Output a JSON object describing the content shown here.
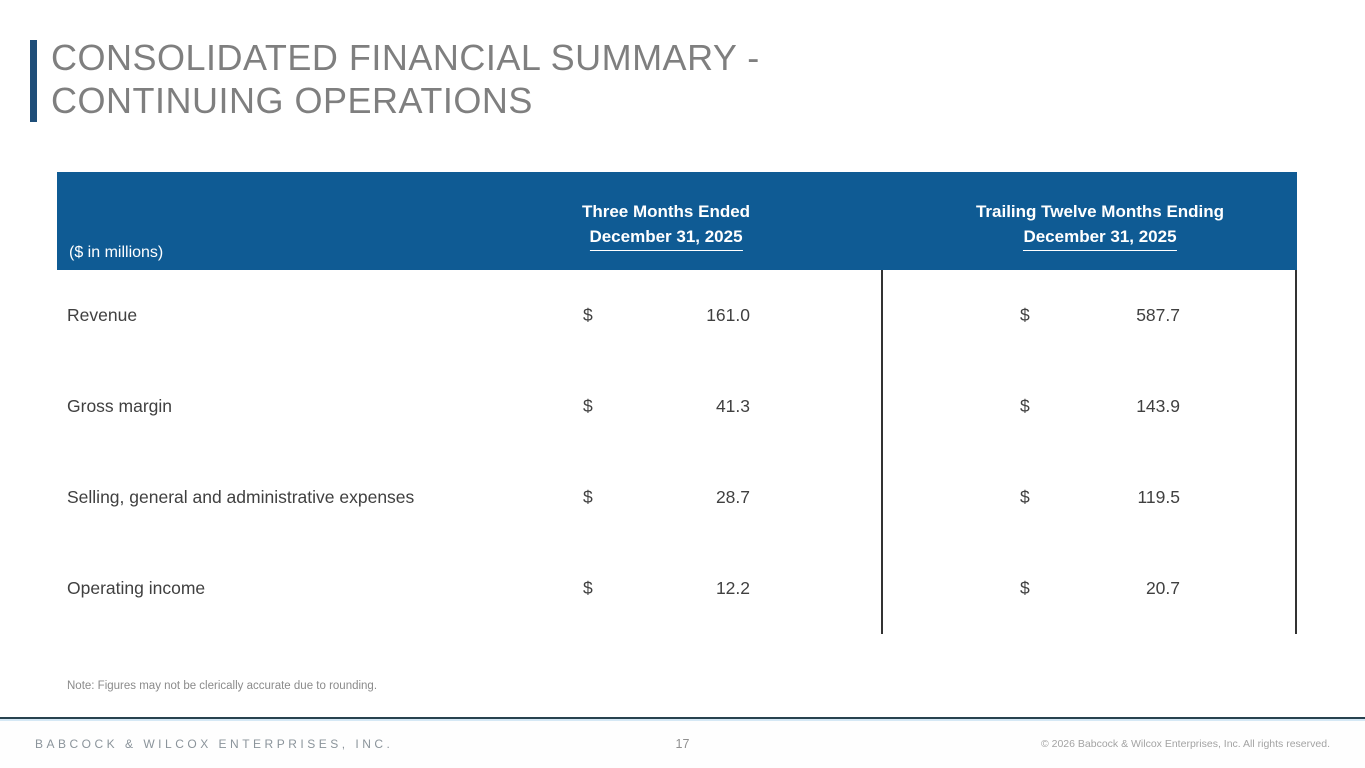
{
  "title": {
    "line1": "CONSOLIDATED FINANCIAL SUMMARY -",
    "line2": "CONTINUING OPERATIONS"
  },
  "table": {
    "unit_label": "($ in millions)",
    "currency_symbol": "$",
    "columns": [
      {
        "line1": "Three Months Ended",
        "line2": "December 31, 2025"
      },
      {
        "line1": "Trailing Twelve Months Ending",
        "line2": "December 31, 2025"
      }
    ],
    "rows": [
      {
        "label": "Revenue",
        "three_months": "161.0",
        "trailing_twelve_months": "587.7"
      },
      {
        "label": "Gross margin",
        "three_months": "41.3",
        "trailing_twelve_months": "143.9"
      },
      {
        "label": "Selling, general and administrative expenses",
        "three_months": "28.7",
        "trailing_twelve_months": "119.5"
      },
      {
        "label": "Operating income",
        "three_months": "12.2",
        "trailing_twelve_months": "20.7"
      }
    ]
  },
  "note": "Note: Figures may not be clerically accurate due to rounding.",
  "footer": {
    "company": "BABCOCK & WILCOX ENTERPRISES, INC.",
    "page_number": "17",
    "copyright": "© 2026 Babcock & Wilcox Enterprises, Inc. All rights reserved."
  },
  "colors": {
    "header_blue": "#0F5B94",
    "accent_bar": "#1F4E79"
  }
}
